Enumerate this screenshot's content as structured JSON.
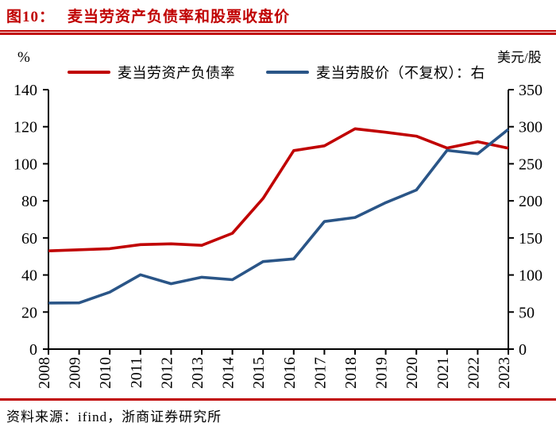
{
  "header": {
    "figure_label": "图10：",
    "title": "麦当劳资产负债率和股票收盘价"
  },
  "footer": {
    "source": "资料来源：ifind，浙商证券研究所"
  },
  "colors": {
    "accent_red": "#C00000",
    "line_red": "#C00000",
    "line_blue": "#2A5587",
    "axis_black": "#000000"
  },
  "chart_data": {
    "type": "line",
    "title": "麦当劳资产负债率和股票收盘价",
    "categories": [
      "2008",
      "2009",
      "2010",
      "2011",
      "2012",
      "2013",
      "2014",
      "2015",
      "2016",
      "2017",
      "2018",
      "2019",
      "2020",
      "2021",
      "2022",
      "2023"
    ],
    "series": [
      {
        "name": "麦当劳资产负债率",
        "axis": "left",
        "color": "#C00000",
        "values": [
          53.0,
          53.6,
          54.2,
          56.4,
          56.8,
          56.0,
          62.5,
          81.3,
          107.1,
          109.7,
          118.9,
          117.0,
          114.9,
          108.5,
          111.9,
          108.4
        ]
      },
      {
        "name": "麦当劳股价（不复权）：右",
        "axis": "right",
        "color": "#2A5587",
        "values": [
          62.2,
          62.4,
          76.8,
          100.3,
          88.2,
          97.0,
          93.7,
          118.1,
          121.7,
          172.1,
          177.6,
          197.6,
          214.6,
          268.1,
          263.5,
          296.5
        ]
      }
    ],
    "left_axis": {
      "unit": "%",
      "min": 0,
      "max": 140,
      "ticks": [
        0,
        20,
        40,
        60,
        80,
        100,
        120,
        140
      ]
    },
    "right_axis": {
      "unit": "美元/股",
      "min": 0,
      "max": 350,
      "ticks": [
        0,
        50,
        100,
        150,
        200,
        250,
        300,
        350
      ]
    },
    "grid": false,
    "legend_position": "top"
  }
}
